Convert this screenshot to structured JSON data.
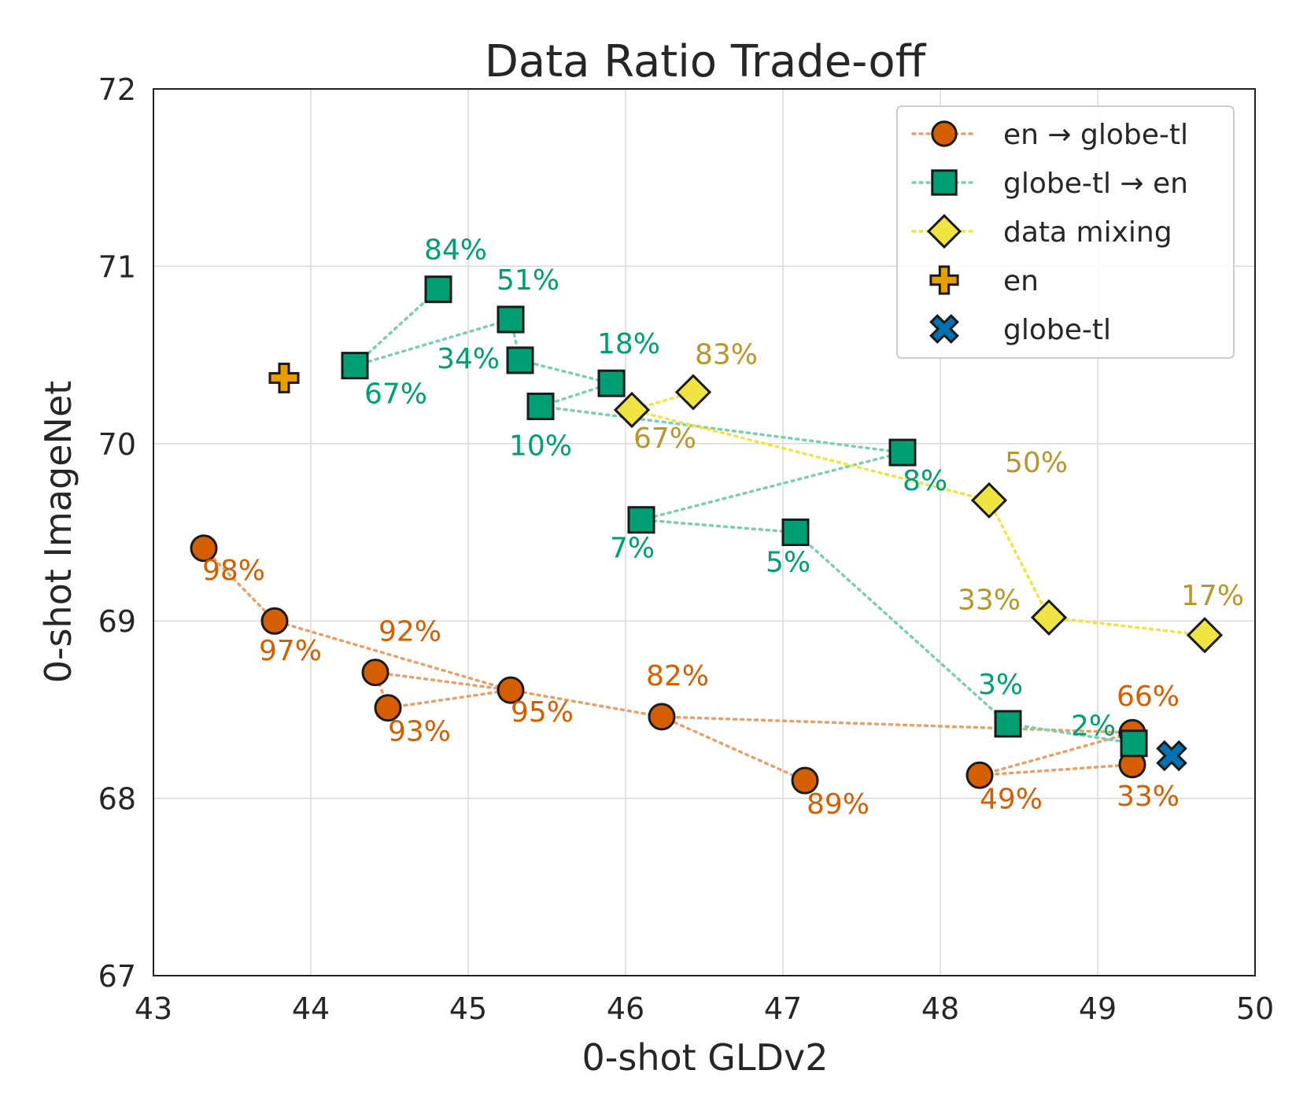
{
  "chart_data": {
    "type": "scatter",
    "title": "Data Ratio Trade-off",
    "xlabel": "0-shot GLDv2",
    "ylabel": "0-shot ImageNet",
    "xlim": [
      43,
      50
    ],
    "ylim": [
      67,
      72
    ],
    "xticks": [
      "43",
      "44",
      "45",
      "46",
      "47",
      "48",
      "49",
      "50"
    ],
    "yticks": [
      "67",
      "68",
      "69",
      "70",
      "71",
      "72"
    ],
    "grid": true,
    "legend_position": "top-right",
    "series": [
      {
        "name": "en → globe-tl",
        "marker": "circle",
        "color": "#d55e00",
        "label_color": "#d55e00",
        "line_color": "#e8a06a",
        "points": [
          {
            "x": 43.32,
            "y": 69.41,
            "label": "98%"
          },
          {
            "x": 43.77,
            "y": 69.0,
            "label": "97%"
          },
          {
            "x": 45.27,
            "y": 68.61,
            "label": "95%"
          },
          {
            "x": 44.41,
            "y": 68.71,
            "label": "92%"
          },
          {
            "x": 44.49,
            "y": 68.51,
            "label": "93%"
          },
          {
            "x": 45.27,
            "y": 68.61,
            "label": ""
          },
          {
            "x": 46.23,
            "y": 68.46,
            "label": "82%"
          },
          {
            "x": 49.22,
            "y": 68.37,
            "label": "66%"
          },
          {
            "x": 48.25,
            "y": 68.13,
            "label": "49%"
          },
          {
            "x": 49.22,
            "y": 68.19,
            "label": "33%"
          }
        ],
        "extra_segments": [
          [
            {
              "x": 46.23,
              "y": 68.46
            },
            {
              "x": 47.14,
              "y": 68.1
            }
          ]
        ],
        "extra_points": [
          {
            "x": 47.14,
            "y": 68.1,
            "label": "89%"
          }
        ]
      },
      {
        "name": "globe-tl → en",
        "marker": "square",
        "color": "#009e73",
        "label_color": "#009e73",
        "line_color": "#7ccdb5",
        "points": [
          {
            "x": 44.81,
            "y": 70.87,
            "label": "84%"
          },
          {
            "x": 44.28,
            "y": 70.44,
            "label": "67%"
          },
          {
            "x": 45.27,
            "y": 70.7,
            "label": "51%"
          },
          {
            "x": 45.33,
            "y": 70.47,
            "label": "34%"
          },
          {
            "x": 45.91,
            "y": 70.34,
            "label": "18%"
          },
          {
            "x": 45.46,
            "y": 70.21,
            "label": "10%"
          },
          {
            "x": 47.76,
            "y": 69.95,
            "label": "8%"
          },
          {
            "x": 46.1,
            "y": 69.57,
            "label": "7%"
          },
          {
            "x": 47.08,
            "y": 69.5,
            "label": "5%"
          },
          {
            "x": 48.43,
            "y": 68.42,
            "label": "3%"
          },
          {
            "x": 49.23,
            "y": 68.31,
            "label": "2%"
          }
        ]
      },
      {
        "name": "data mixing",
        "marker": "diamond",
        "color": "#f0e442",
        "label_color": "#b8962a",
        "line_color": "#f0e442",
        "points": [
          {
            "x": 46.43,
            "y": 70.29,
            "label": "83%"
          },
          {
            "x": 46.04,
            "y": 70.19,
            "label": "67%"
          },
          {
            "x": 48.31,
            "y": 69.68,
            "label": "50%"
          },
          {
            "x": 48.69,
            "y": 69.02,
            "label": "33%"
          },
          {
            "x": 49.68,
            "y": 68.92,
            "label": "17%"
          }
        ]
      },
      {
        "name": "en",
        "marker": "plus",
        "color": "#e69f00",
        "points": [
          {
            "x": 43.83,
            "y": 70.37,
            "label": ""
          }
        ]
      },
      {
        "name": "globe-tl",
        "marker": "x",
        "color": "#0072b2",
        "points": [
          {
            "x": 49.47,
            "y": 68.24,
            "label": ""
          }
        ]
      }
    ]
  }
}
